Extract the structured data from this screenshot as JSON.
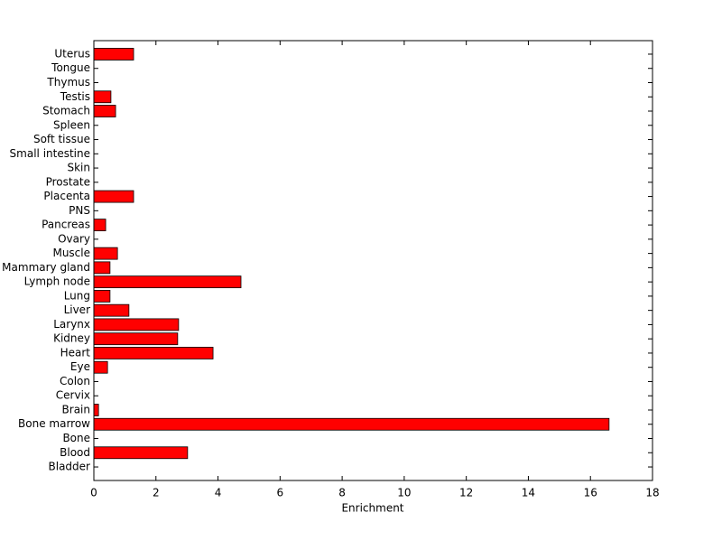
{
  "chart_data": {
    "type": "barh",
    "xlabel": "Enrichment",
    "categories": [
      "Bladder",
      "Blood",
      "Bone",
      "Bone marrow",
      "Brain",
      "Cervix",
      "Colon",
      "Eye",
      "Heart",
      "Kidney",
      "Larynx",
      "Liver",
      "Lung",
      "Lymph node",
      "Mammary gland",
      "Muscle",
      "Ovary",
      "Pancreas",
      "PNS",
      "Placenta",
      "Prostate",
      "Skin",
      "Small intestine",
      "Soft tissue",
      "Spleen",
      "Stomach",
      "Testis",
      "Thymus",
      "Tongue",
      "Uterus"
    ],
    "values": [
      0,
      3.02,
      0,
      16.6,
      0.15,
      0,
      0,
      0.44,
      3.84,
      2.7,
      2.73,
      1.13,
      0.52,
      4.74,
      0.52,
      0.76,
      0,
      0.38,
      0,
      1.28,
      0,
      0,
      0,
      0,
      0,
      0.7,
      0.55,
      0,
      0,
      1.28
    ],
    "color": "#ff0000",
    "xlim": [
      0,
      18
    ],
    "xticks": [
      0,
      2,
      4,
      6,
      8,
      10,
      12,
      14,
      16,
      18
    ]
  }
}
